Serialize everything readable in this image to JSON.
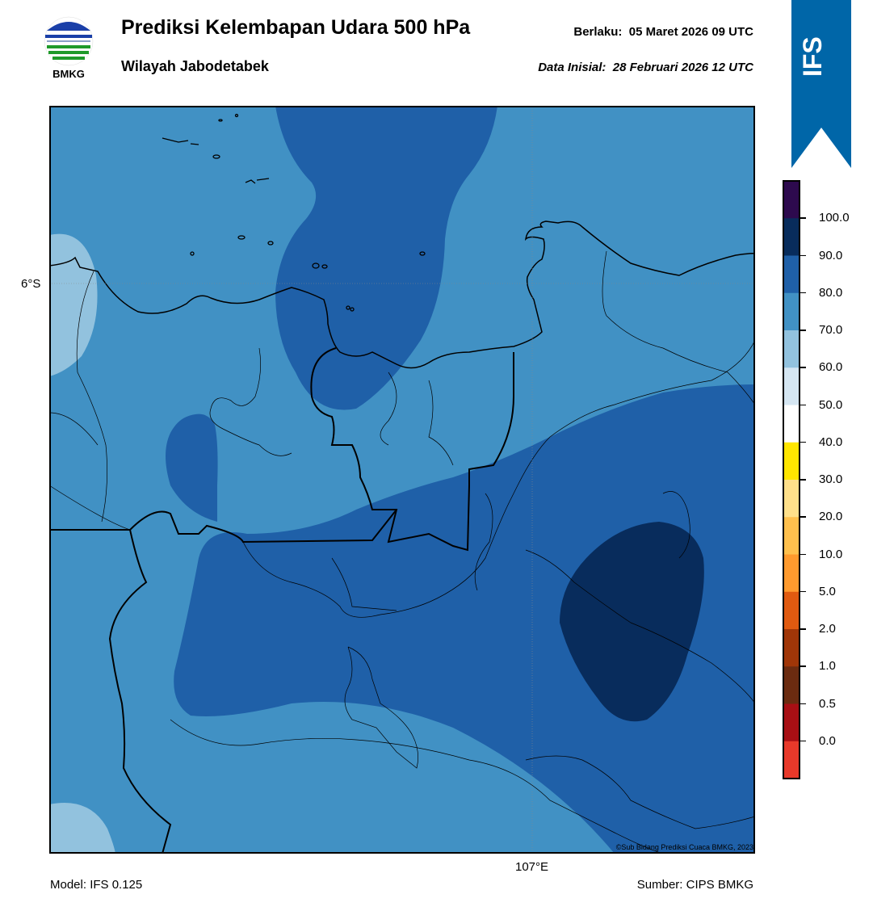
{
  "header": {
    "logo_text": "BMKG",
    "title": "Prediksi Kelembapan Udara 500 hPa",
    "subtitle": "Wilayah Jabodetabek",
    "valid_label": "Berlaku:",
    "valid_value": "05 Maret 2026 09 UTC",
    "init_label": "Data Inisial:",
    "init_value": "28 Februari 2026 12 UTC",
    "ribbon_text": "IFS"
  },
  "map": {
    "lat_label": "6°S",
    "lon_label": "107°E",
    "copyright": "©Sub Bidang Prediksi Cuaca BMKG, 2023"
  },
  "footer": {
    "model": "Model: IFS 0.125",
    "source": "Sumber: CIPS BMKG"
  },
  "colorbar": {
    "labels": [
      "100.0",
      "90.0",
      "80.0",
      "70.0",
      "60.0",
      "50.0",
      "40.0",
      "30.0",
      "20.0",
      "10.0",
      "5.0",
      "2.0",
      "1.0",
      "0.5",
      "0.0"
    ],
    "colors": [
      "#2d0a4e",
      "#082c5c",
      "#1f60a8",
      "#4191c4",
      "#92c2de",
      "#d5e6f2",
      "#ffffff",
      "#ffe600",
      "#ffe08a",
      "#ffc04d",
      "#ff9a2e",
      "#e05a10",
      "#a03608",
      "#6b2b10",
      "#a80f14",
      "#e8392a"
    ],
    "accent_blue": "#0066a8"
  }
}
